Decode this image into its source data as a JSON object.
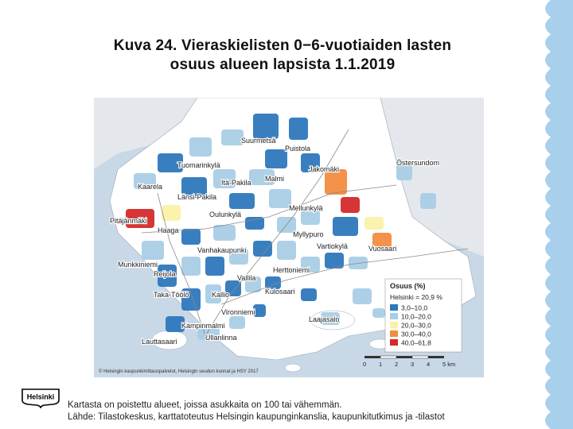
{
  "slide": {
    "title_line1": "Kuva 24. Vieraskielisten 0−6-vuotiaiden lasten",
    "title_line2": "osuus alueen lapsista 1.1.2019",
    "footer_line1": "Kartasta on poistettu alueet, joissa asukkaita on 100 tai vähemmän.",
    "footer_line2": "Lähde: Tilastokeskus, karttatoteutus Helsingin kaupunginkanslia, kaupunkitutkimus ja -tilastot",
    "logo_text": "Helsinki",
    "accent_wave_color": "#a8d0ec"
  },
  "map": {
    "places": [
      {
        "name": "Suurmetsä"
      },
      {
        "name": "Puistola"
      },
      {
        "name": "Tuomarinkylä"
      },
      {
        "name": "Jakomäki"
      },
      {
        "name": "Östersundom"
      },
      {
        "name": "Itä-Pakila"
      },
      {
        "name": "Malmi"
      },
      {
        "name": "Kaarela"
      },
      {
        "name": "Länsi-Pakila"
      },
      {
        "name": "Mellunkylä"
      },
      {
        "name": "Pitäjänmäki"
      },
      {
        "name": "Oulunkylä"
      },
      {
        "name": "Haaga"
      },
      {
        "name": "Myllypuro"
      },
      {
        "name": "Vartiokylä"
      },
      {
        "name": "Vuosaari"
      },
      {
        "name": "Vanhakaupunki"
      },
      {
        "name": "Munkkiniemi"
      },
      {
        "name": "Herttoniemi"
      },
      {
        "name": "Reijola"
      },
      {
        "name": "Vallila"
      },
      {
        "name": "Taka-Töölö"
      },
      {
        "name": "Kallio"
      },
      {
        "name": "Kulosaari"
      },
      {
        "name": "Vironniemi"
      },
      {
        "name": "Laajasalo"
      },
      {
        "name": "Kampinmalmi"
      },
      {
        "name": "Ullanlinna"
      },
      {
        "name": "Lauttasaari"
      }
    ],
    "legend": {
      "title": "Osuus (%)",
      "reference": "Helsinki = 20,9 %",
      "classes": [
        {
          "label": "3,0–10,0",
          "color": "#2e78bd"
        },
        {
          "label": "10,0–20,0",
          "color": "#a9cde6"
        },
        {
          "label": "20,0–30,0",
          "color": "#fbf1a6"
        },
        {
          "label": "30,0–40,0",
          "color": "#f28c3e"
        },
        {
          "label": "40,0–61,8",
          "color": "#d42a2a"
        }
      ]
    },
    "scale": {
      "labels": [
        "0",
        "1",
        "2",
        "3",
        "4",
        "5 km"
      ]
    },
    "copyright": "© Helsingin kaupunkimittauspalvelut, Helsingin seudun kunnat ja HSY 2017",
    "colors": {
      "sea": "#c8d8e6",
      "land": "#ffffff",
      "other_land": "#e4e8ec"
    }
  }
}
